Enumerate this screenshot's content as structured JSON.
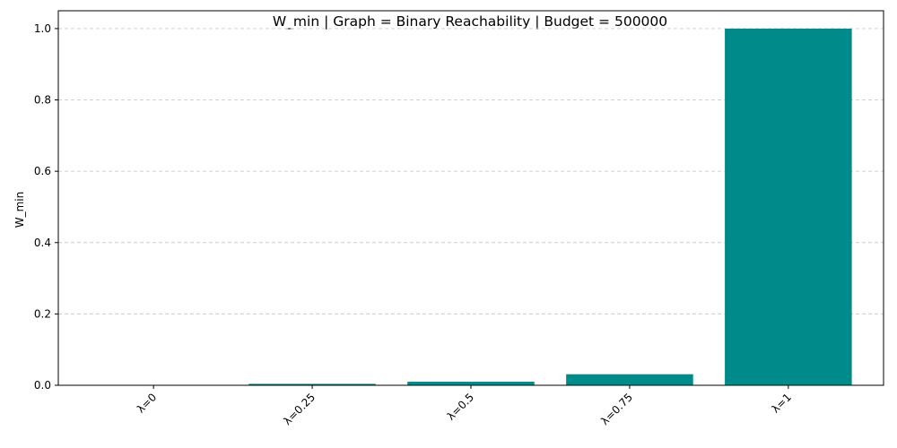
{
  "chart_data": {
    "type": "bar",
    "title": "W_min | Graph = Binary Reachability | Budget = 500000",
    "xlabel": "",
    "ylabel": "W_min",
    "categories": [
      "λ=0",
      "λ=0.25",
      "λ=0.5",
      "λ=0.75",
      "λ=1"
    ],
    "values": [
      0.0,
      0.004,
      0.01,
      0.031,
      1.0
    ],
    "ylim": [
      0,
      1.05
    ],
    "yticks": [
      "0.0",
      "0.2",
      "0.4",
      "0.6",
      "0.8",
      "1.0"
    ],
    "bar_color": "#008b8b",
    "grid": "y-dashed"
  }
}
